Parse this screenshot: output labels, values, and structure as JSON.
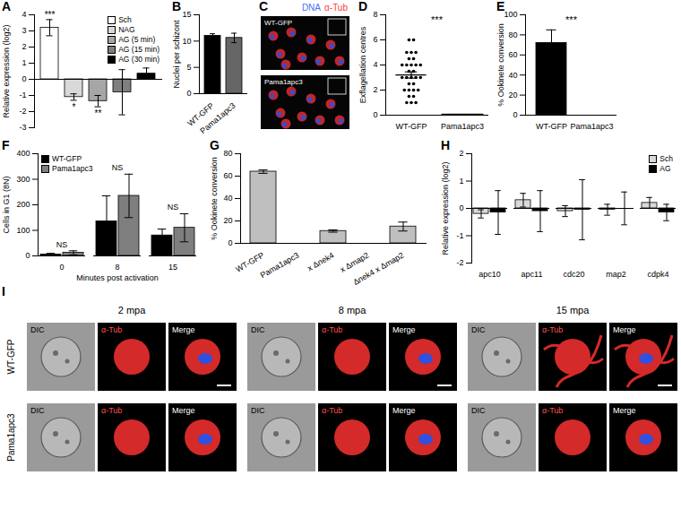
{
  "chart_data": [
    {
      "panel": "A",
      "type": "bar",
      "y_label": "Relative expression (log2)",
      "categories": [
        "Sch",
        "NAG",
        "AG (5 min)",
        "AG (15 min)",
        "AG (30 min)"
      ],
      "values": [
        3.2,
        -1.1,
        -1.35,
        -0.8,
        0.35
      ],
      "errors": [
        0.5,
        0.2,
        0.35,
        1.4,
        0.35
      ],
      "colors": [
        "#ffffff",
        "#d9d9d9",
        "#a6a6a6",
        "#7f7f7f",
        "#000000"
      ],
      "annotations": [
        "***",
        "*",
        "**",
        null,
        null
      ],
      "ylim": [
        -3,
        4
      ],
      "yticks": [
        -3,
        -2,
        -1,
        0,
        1,
        2,
        3,
        4
      ],
      "legend": "top-right",
      "tick_labels": "y"
    },
    {
      "panel": "B",
      "type": "bar",
      "y_label": "Nuclei per schizont",
      "categories": [
        "WT-GFP",
        "Pama1apc3"
      ],
      "values": [
        11,
        10.6
      ],
      "errors": [
        0.4,
        0.9
      ],
      "colors": [
        "#000000",
        "#666666"
      ],
      "ylim": [
        0,
        15
      ],
      "yticks": [
        0,
        5,
        10,
        15
      ]
    },
    {
      "panel": "D",
      "type": "scatter",
      "y_label": "Exflagellation centres",
      "categories": [
        "WT-GFP",
        "Pama1apc3"
      ],
      "points": [
        [
          6,
          6,
          5,
          5,
          5,
          4.5,
          4.5,
          4,
          4,
          4,
          4,
          4,
          3.5,
          3.5,
          3,
          3,
          3,
          3,
          3,
          2.5,
          2.5,
          2,
          2,
          2,
          2,
          1.5,
          1.5,
          1,
          1,
          1
        ],
        [
          0,
          0,
          0,
          0,
          0,
          0,
          0,
          0,
          0,
          0,
          0,
          0,
          0,
          0,
          0,
          0,
          0,
          0,
          0,
          0,
          0,
          0,
          0,
          0,
          0,
          0,
          0,
          0
        ]
      ],
      "means": [
        3.2,
        0
      ],
      "errors": [
        0.25,
        0
      ],
      "color": "#000000",
      "annotation": "***",
      "ylim": [
        0,
        8
      ],
      "yticks": [
        0,
        2,
        4,
        6,
        8
      ]
    },
    {
      "panel": "E",
      "type": "bar",
      "y_label": "% Ookinete conversion",
      "categories": [
        "WT-GFP",
        "Pama1apc3"
      ],
      "values": [
        72,
        0
      ],
      "errors": [
        13,
        0
      ],
      "colors": [
        "#000000",
        "#666666"
      ],
      "annotation": "***",
      "ylim": [
        0,
        100
      ],
      "yticks": [
        0,
        20,
        40,
        60,
        80,
        100
      ]
    },
    {
      "panel": "F",
      "type": "grouped_bar",
      "y_label": "Cells in G1 (8N)",
      "x_label": "Minutes post activation",
      "categories": [
        "0",
        "8",
        "15"
      ],
      "series": [
        {
          "name": "WT-GFP",
          "color": "#000000",
          "values": [
            5,
            135,
            80
          ],
          "errors": [
            5,
            100,
            25
          ]
        },
        {
          "name": "Pama1apc3",
          "color": "#7f7f7f",
          "values": [
            12,
            235,
            110
          ],
          "errors": [
            8,
            85,
            55
          ]
        }
      ],
      "annotations": [
        "NS",
        "NS",
        "NS"
      ],
      "ylim": [
        0,
        400
      ],
      "yticks": [
        0,
        100,
        200,
        300,
        400
      ],
      "legend": "top-left"
    },
    {
      "panel": "G",
      "type": "bar",
      "y_label": "% Ookinete conversion",
      "categories": [
        "WT-GFP",
        "Pama1apc3",
        "x Δnek4",
        "x Δmap2",
        "Δnek4 x Δmap2"
      ],
      "values": [
        64,
        0,
        11,
        0,
        15
      ],
      "errors": [
        1.5,
        0,
        1,
        0,
        4
      ],
      "color": "#bfbfbf",
      "ylim": [
        0,
        80
      ],
      "yticks": [
        0,
        20,
        40,
        60,
        80
      ]
    },
    {
      "panel": "H",
      "type": "grouped_bar",
      "y_label": "Relative expression (log2)",
      "categories": [
        "apc10",
        "apc11",
        "cdc20",
        "map2",
        "cdpk4"
      ],
      "series": [
        {
          "name": "Sch",
          "color": "#d9d9d9",
          "values": [
            -0.2,
            0.3,
            -0.1,
            -0.05,
            0.2
          ],
          "errors": [
            0.15,
            0.25,
            0.2,
            0.2,
            0.2
          ]
        },
        {
          "name": "AG",
          "color": "#000000",
          "values": [
            -0.15,
            -0.1,
            -0.05,
            0,
            -0.15
          ],
          "errors": [
            0.8,
            0.75,
            1.1,
            0.6,
            0.3
          ]
        }
      ],
      "ylim": [
        -2,
        2
      ],
      "yticks": [
        -2,
        -1,
        0,
        1,
        2
      ],
      "legend": "top-right"
    }
  ],
  "micrographs": [
    {
      "panel": "C",
      "channels": [
        {
          "label": "DNA",
          "color": "#4c6ef5"
        },
        {
          "label": "α-Tub",
          "color": "#ff3b3b"
        }
      ],
      "rows": [
        "WT-GFP",
        "Pama1apc3"
      ]
    },
    {
      "panel": "I",
      "timepoints": [
        "2 mpa",
        "8 mpa",
        "15 mpa"
      ],
      "channels": [
        "DIC",
        "α-Tub",
        "Merge"
      ],
      "rows": [
        "WT-GFP",
        "Pama1apc3"
      ]
    }
  ]
}
